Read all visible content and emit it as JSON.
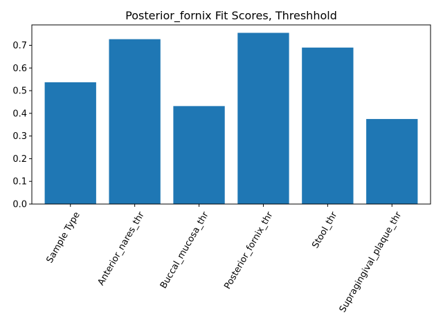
{
  "chart_data": {
    "type": "bar",
    "title": "Posterior_fornix Fit Scores, Threshhold",
    "xlabel": "",
    "ylabel": "",
    "categories": [
      "Sample Type",
      "Anterior_nares_thr",
      "Buccal_mucosa_thr",
      "Posterior_fornix_thr",
      "Stool_thr",
      "Supragingival_plaque_thr"
    ],
    "values": [
      0.537,
      0.727,
      0.432,
      0.755,
      0.69,
      0.375
    ],
    "ylim": [
      0,
      0.79
    ],
    "yticks": [
      0.0,
      0.1,
      0.2,
      0.3,
      0.4,
      0.5,
      0.6,
      0.7
    ],
    "ytick_labels": [
      "0.0",
      "0.1",
      "0.2",
      "0.3",
      "0.4",
      "0.5",
      "0.6",
      "0.7"
    ],
    "xtick_rotation_deg": 60,
    "bar_color": "#1f77b4",
    "grid": false,
    "legend": "none"
  }
}
